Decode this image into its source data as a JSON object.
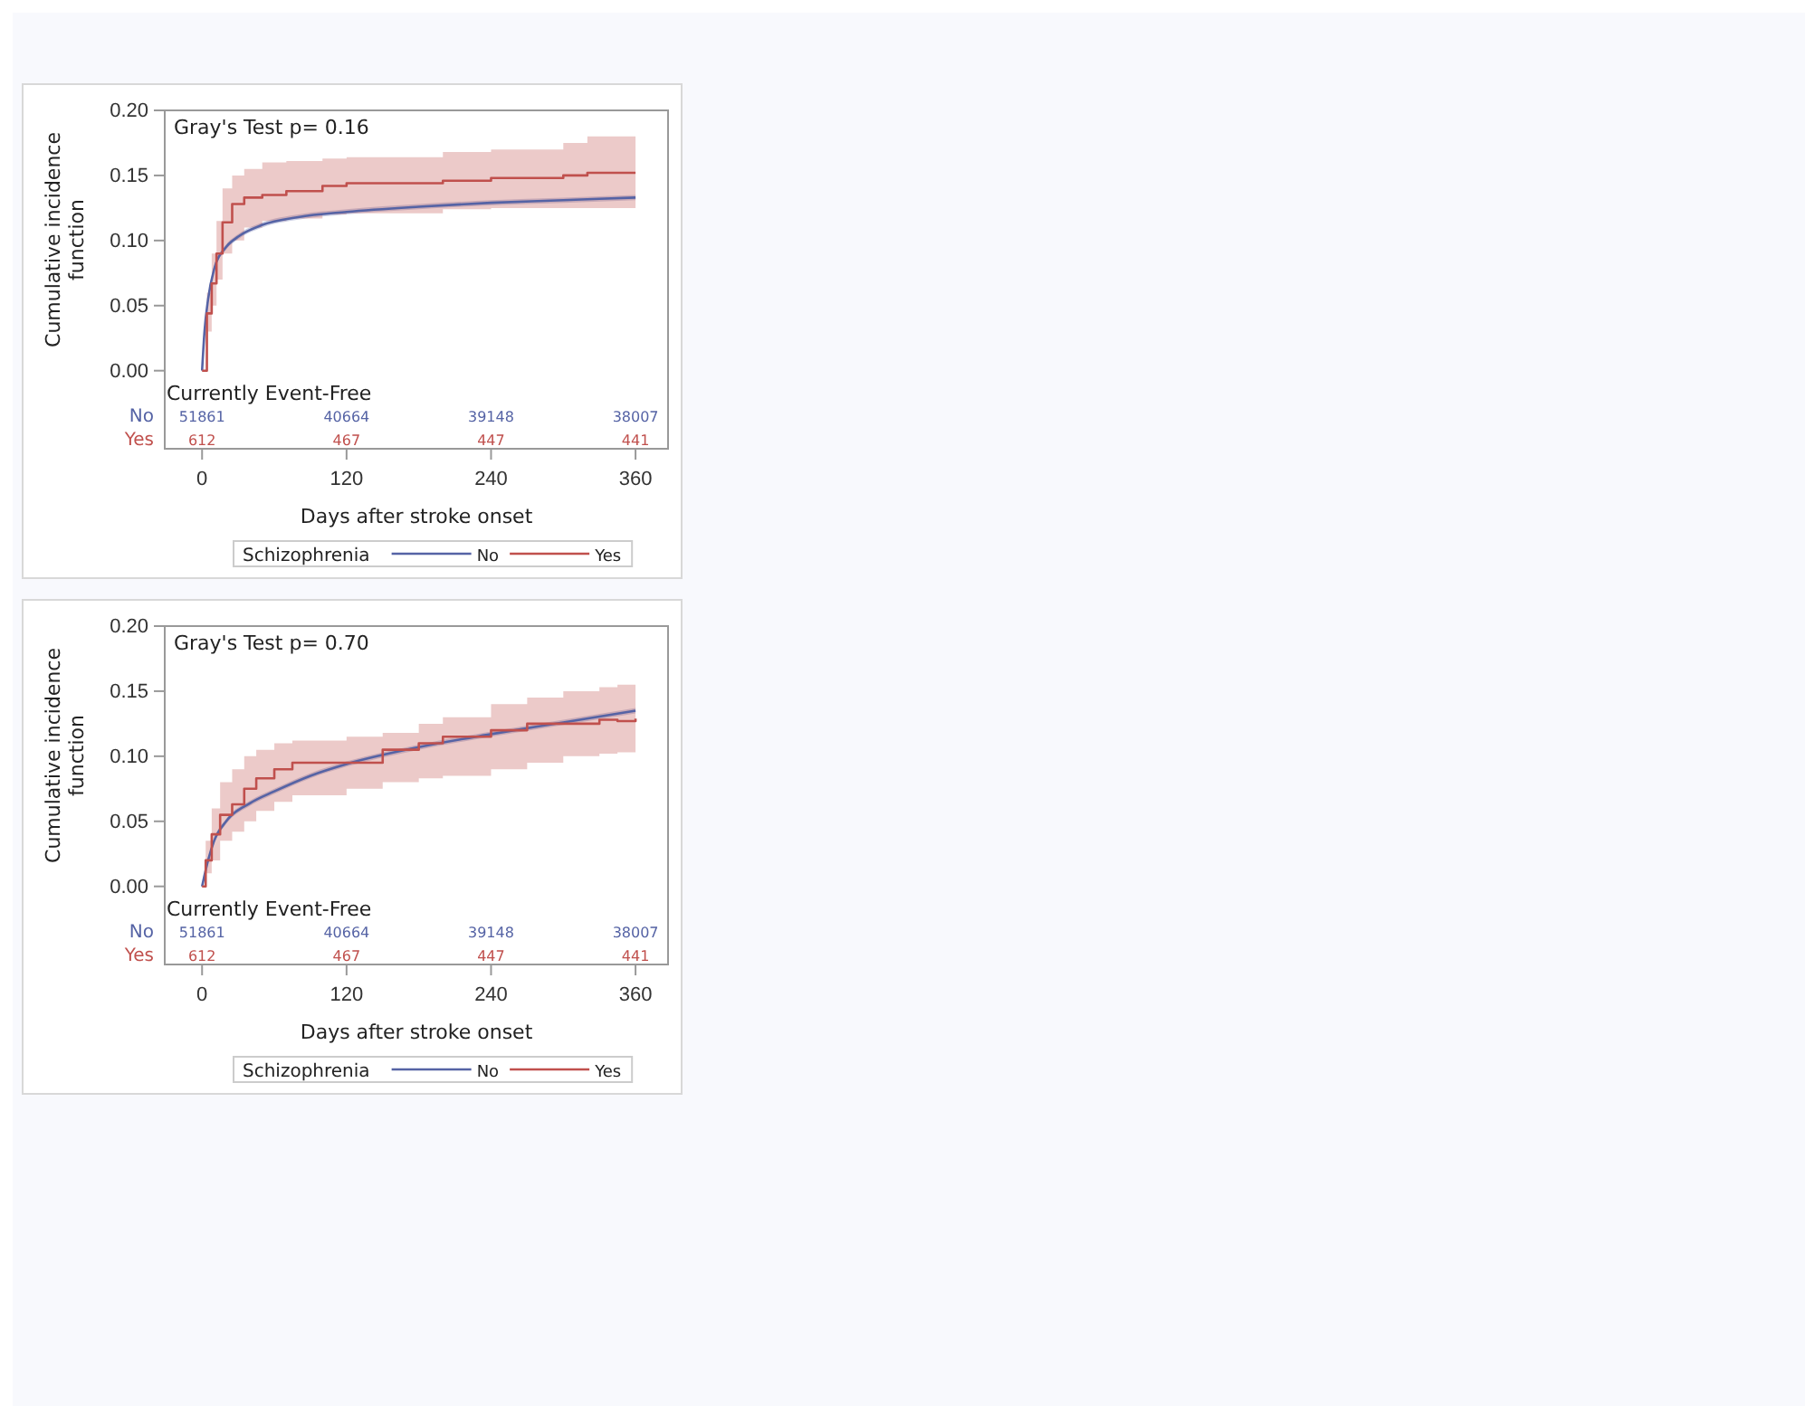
{
  "chart_data": [
    {
      "type": "step",
      "xlabel": "Days after stroke onset",
      "ylabel": "Cumulative incidence function",
      "legend_title": "Schizophrenia",
      "legend": "bottom",
      "grid": false,
      "xlim": [
        -31,
        387
      ],
      "xticks": [
        0,
        120,
        240,
        360
      ],
      "ylim": [
        -0.06,
        0.2
      ],
      "yticks": [
        {
          "value": 0,
          "label": "0.00"
        },
        {
          "value": 0.05,
          "label": "0.05"
        },
        {
          "value": 0.1,
          "label": "0.10"
        },
        {
          "value": 0.15,
          "label": "0.15"
        },
        {
          "value": 0.2,
          "label": "0.20"
        }
      ],
      "annotations": [
        "Gray's Test p= 0.16",
        "Currently Event-Free",
        "51861",
        "40664",
        "39148",
        "38007",
        "612",
        "467",
        "447",
        "441"
      ],
      "series": [
        {
          "name": "No",
          "type": "line",
          "color": "#5563a5",
          "x": [
            0,
            2,
            5,
            10,
            20,
            30,
            50,
            80,
            120,
            180,
            240,
            300,
            360
          ],
          "values": [
            0,
            0.03,
            0.055,
            0.078,
            0.095,
            0.103,
            0.112,
            0.118,
            0.122,
            0.126,
            0.129,
            0.131,
            0.133
          ],
          "lower": [
            0,
            0.028,
            0.053,
            0.076,
            0.093,
            0.101,
            0.11,
            0.116,
            0.12,
            0.124,
            0.127,
            0.129,
            0.131
          ],
          "upper": [
            0,
            0.032,
            0.057,
            0.08,
            0.097,
            0.105,
            0.114,
            0.12,
            0.124,
            0.128,
            0.131,
            0.133,
            0.135
          ]
        },
        {
          "name": "Yes",
          "color": "#c0504d",
          "x": [
            0,
            4,
            8,
            12,
            17,
            25,
            35,
            50,
            70,
            100,
            120,
            200,
            240,
            300,
            320,
            360
          ],
          "values": [
            0,
            0.044,
            0.067,
            0.09,
            0.114,
            0.128,
            0.133,
            0.135,
            0.138,
            0.142,
            0.144,
            0.146,
            0.148,
            0.15,
            0.152,
            0.152
          ],
          "lower": [
            0,
            0.03,
            0.05,
            0.07,
            0.09,
            0.1,
            0.11,
            0.115,
            0.117,
            0.12,
            0.121,
            0.124,
            0.125,
            0.125,
            0.125,
            0.125
          ],
          "upper": [
            0,
            0.06,
            0.09,
            0.115,
            0.14,
            0.15,
            0.155,
            0.16,
            0.161,
            0.163,
            0.164,
            0.168,
            0.17,
            0.175,
            0.18,
            0.182
          ]
        }
      ]
    },
    {
      "type": "step",
      "xlabel": "Days after stroke onset",
      "ylabel": "Cumulative incidence function",
      "legend_title": "Schizophrenia",
      "legend": "bottom",
      "grid": false,
      "xlim": [
        -31,
        387
      ],
      "xticks": [
        0,
        120,
        240,
        360
      ],
      "ylim": [
        -0.06,
        0.2
      ],
      "yticks": [
        {
          "value": 0,
          "label": "0.00"
        },
        {
          "value": 0.05,
          "label": "0.05"
        },
        {
          "value": 0.1,
          "label": "0.10"
        },
        {
          "value": 0.15,
          "label": "0.15"
        },
        {
          "value": 0.2,
          "label": "0.20"
        }
      ],
      "annotations": [
        "Gray's Test p= 0.70",
        "Currently Event-Free",
        "51861",
        "40664",
        "39148",
        "38007",
        "612",
        "467",
        "447",
        "441"
      ],
      "series": [
        {
          "name": "No",
          "type": "line",
          "color": "#5563a5",
          "x": [
            0,
            5,
            10,
            20,
            40,
            60,
            90,
            120,
            180,
            240,
            300,
            360
          ],
          "values": [
            0,
            0.02,
            0.035,
            0.05,
            0.064,
            0.073,
            0.085,
            0.094,
            0.107,
            0.117,
            0.126,
            0.135
          ],
          "lower": [
            0,
            0.018,
            0.033,
            0.048,
            0.062,
            0.071,
            0.083,
            0.092,
            0.105,
            0.115,
            0.124,
            0.133
          ],
          "upper": [
            0,
            0.022,
            0.037,
            0.052,
            0.066,
            0.075,
            0.087,
            0.096,
            0.109,
            0.119,
            0.128,
            0.137
          ]
        },
        {
          "name": "Yes",
          "color": "#c0504d",
          "x": [
            0,
            3,
            8,
            15,
            25,
            35,
            45,
            60,
            75,
            120,
            150,
            180,
            200,
            240,
            270,
            300,
            330,
            345,
            360
          ],
          "values": [
            0,
            0.02,
            0.04,
            0.055,
            0.063,
            0.075,
            0.083,
            0.09,
            0.095,
            0.095,
            0.105,
            0.11,
            0.115,
            0.12,
            0.125,
            0.125,
            0.128,
            0.127,
            0.129
          ],
          "lower": [
            0,
            0.01,
            0.02,
            0.035,
            0.042,
            0.05,
            0.058,
            0.065,
            0.07,
            0.075,
            0.08,
            0.083,
            0.085,
            0.09,
            0.095,
            0.1,
            0.102,
            0.103,
            0.105
          ],
          "upper": [
            0,
            0.035,
            0.06,
            0.08,
            0.09,
            0.1,
            0.105,
            0.11,
            0.112,
            0.115,
            0.118,
            0.125,
            0.13,
            0.14,
            0.145,
            0.15,
            0.153,
            0.155,
            0.157
          ]
        }
      ]
    }
  ]
}
